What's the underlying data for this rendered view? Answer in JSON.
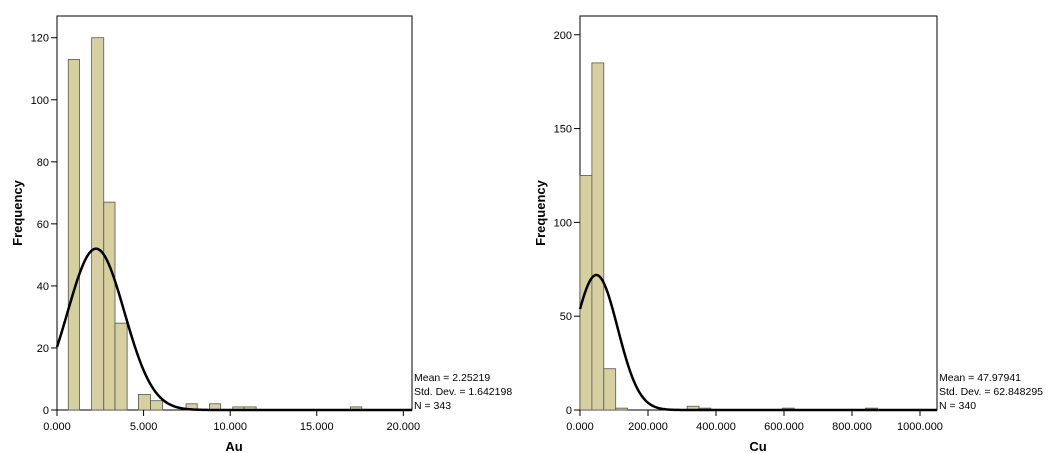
{
  "chart_data": [
    {
      "type": "bar",
      "variable": "Au",
      "xlabel": "Au",
      "ylabel": "Frequency",
      "bar_color": "#d6d0a1",
      "bar_stroke": "#555555",
      "xlim": [
        0,
        20.5
      ],
      "ylim": [
        0,
        127
      ],
      "xticks": [
        0,
        5,
        10,
        15,
        20
      ],
      "xtick_labels": [
        "0.000",
        "5.000",
        "10.000",
        "15.000",
        "20.000"
      ],
      "yticks": [
        0,
        20,
        40,
        60,
        80,
        100,
        120
      ],
      "ytick_labels": [
        "0",
        "20",
        "40",
        "60",
        "80",
        "100",
        "120"
      ],
      "bins": [
        {
          "x0": 0.65,
          "x1": 1.3,
          "count": 113
        },
        {
          "x0": 2.0,
          "x1": 2.7,
          "count": 120
        },
        {
          "x0": 2.7,
          "x1": 3.35,
          "count": 67
        },
        {
          "x0": 3.35,
          "x1": 4.05,
          "count": 28
        },
        {
          "x0": 4.7,
          "x1": 5.4,
          "count": 5
        },
        {
          "x0": 5.4,
          "x1": 6.1,
          "count": 3
        },
        {
          "x0": 7.45,
          "x1": 8.1,
          "count": 2
        },
        {
          "x0": 8.8,
          "x1": 9.45,
          "count": 2
        },
        {
          "x0": 10.15,
          "x1": 10.8,
          "count": 1
        },
        {
          "x0": 10.8,
          "x1": 11.5,
          "count": 1
        },
        {
          "x0": 16.95,
          "x1": 17.6,
          "count": 1
        }
      ],
      "normal_curve": {
        "mean": 2.25219,
        "sd": 1.642198,
        "peak": 52
      },
      "stats": {
        "mean": "Mean = 2.25219",
        "sd": "Std. Dev. = 1.642198",
        "n": "N = 343"
      }
    },
    {
      "type": "bar",
      "variable": "Cu",
      "xlabel": "Cu",
      "ylabel": "Frequency",
      "bar_color": "#d6d0a1",
      "bar_stroke": "#555555",
      "xlim": [
        0,
        1050
      ],
      "ylim": [
        0,
        210
      ],
      "xticks": [
        0,
        200,
        400,
        600,
        800,
        1000
      ],
      "xtick_labels": [
        "0.000",
        "200.000",
        "400.000",
        "600.000",
        "800.000",
        "1000.000"
      ],
      "yticks": [
        0,
        50,
        100,
        150,
        200
      ],
      "ytick_labels": [
        "0",
        "50",
        "100",
        "150",
        "200"
      ],
      "bins": [
        {
          "x0": 0,
          "x1": 35,
          "count": 125
        },
        {
          "x0": 35,
          "x1": 70,
          "count": 185
        },
        {
          "x0": 70,
          "x1": 105,
          "count": 22
        },
        {
          "x0": 105,
          "x1": 140,
          "count": 1
        },
        {
          "x0": 315,
          "x1": 350,
          "count": 2
        },
        {
          "x0": 350,
          "x1": 385,
          "count": 1
        },
        {
          "x0": 595,
          "x1": 630,
          "count": 1
        },
        {
          "x0": 840,
          "x1": 875,
          "count": 1
        }
      ],
      "normal_curve": {
        "mean": 47.97941,
        "sd": 62.848295,
        "peak": 72
      },
      "stats": {
        "mean": "Mean = 47.97941",
        "sd": "Std. Dev. = 62.848295",
        "n": "N = 340"
      }
    }
  ]
}
